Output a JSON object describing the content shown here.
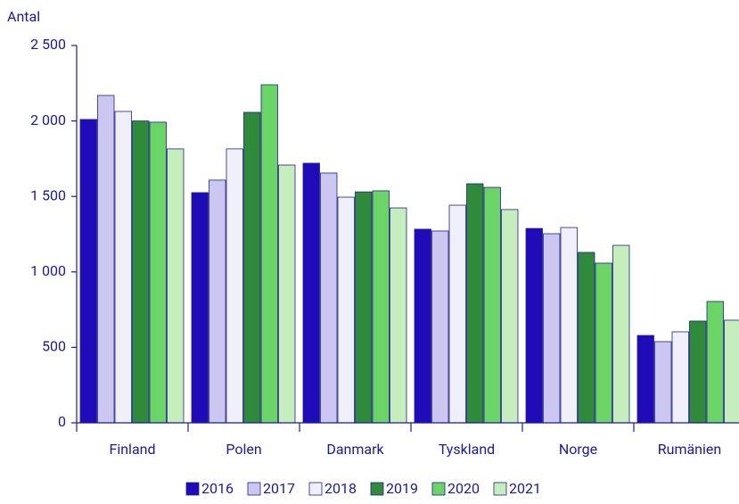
{
  "chart_data": {
    "type": "bar",
    "ylabel": "Antal",
    "categories": [
      "Finland",
      "Polen",
      "Danmark",
      "Tyskland",
      "Norge",
      "Rumänien"
    ],
    "series": [
      {
        "name": "2016",
        "color": "#1f0cb8",
        "values": [
          2010,
          1525,
          1720,
          1283,
          1288,
          579
        ]
      },
      {
        "name": "2017",
        "color": "#cbc7f0",
        "values": [
          2169,
          1608,
          1655,
          1271,
          1253,
          538
        ]
      },
      {
        "name": "2018",
        "color": "#f0f0fb",
        "values": [
          2063,
          1815,
          1495,
          1442,
          1294,
          603
        ]
      },
      {
        "name": "2019",
        "color": "#2f8a3c",
        "values": [
          2000,
          2057,
          1530,
          1584,
          1129,
          674
        ]
      },
      {
        "name": "2020",
        "color": "#6ad466",
        "values": [
          1992,
          2240,
          1537,
          1560,
          1058,
          804
        ]
      },
      {
        "name": "2021",
        "color": "#c6eebd",
        "values": [
          1815,
          1708,
          1424,
          1413,
          1176,
          680
        ]
      }
    ],
    "ylim": [
      0,
      2500
    ],
    "yticks": [
      0,
      500,
      {
        "value": 1000,
        "label": "1 000"
      },
      {
        "value": 1500,
        "label": "1 500"
      },
      {
        "value": 2000,
        "label": "2 000"
      },
      {
        "value": 2500,
        "label": "2 500"
      }
    ],
    "legend": "bottom"
  }
}
